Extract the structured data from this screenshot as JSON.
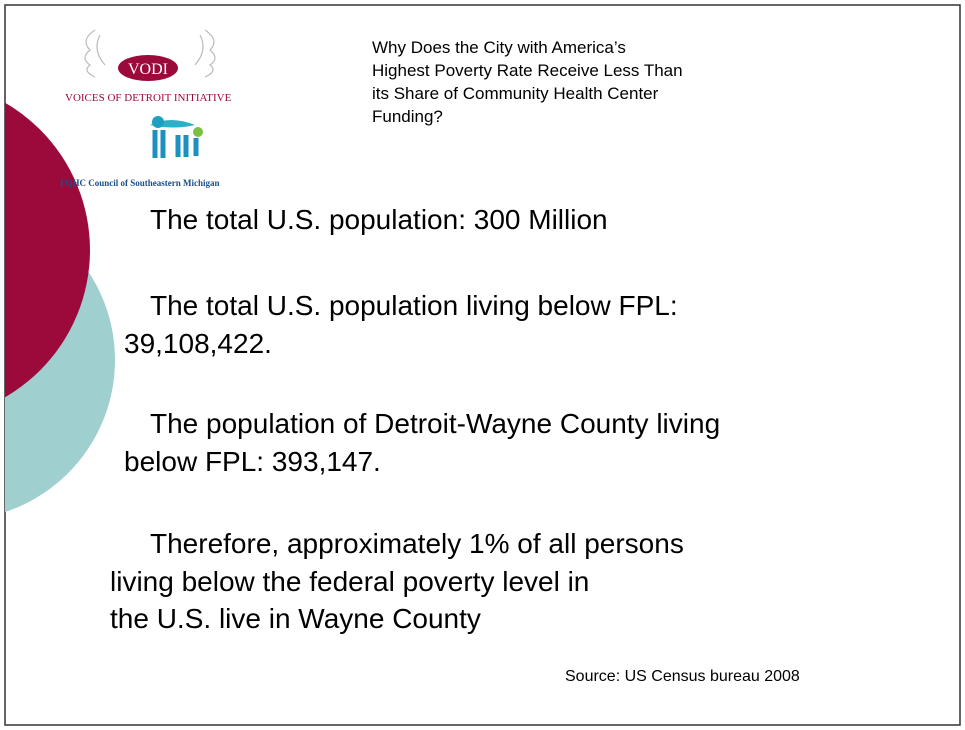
{
  "logo": {
    "badge": "VODI",
    "name": "VOICES OF DETROIT INITIATIVE",
    "council": "FQHC Council of Southeastern Michigan"
  },
  "title": [
    "Why Does the City with America’s",
    "Highest Poverty Rate Receive Less Than",
    "its Share of Community Health Center",
    "Funding?"
  ],
  "paragraphs": [
    [
      "The total U.S. population: 300 Million"
    ],
    [
      "The total U.S. population living below FPL:",
      "39,108,422."
    ],
    [
      "The population of Detroit-Wayne County living",
      "below FPL: 393,147."
    ],
    [
      "Therefore, approximately 1% of all persons",
      "living below the federal poverty level in",
      "the U.S. live in Wayne County"
    ]
  ],
  "source": "Source: US Census bureau 2008"
}
